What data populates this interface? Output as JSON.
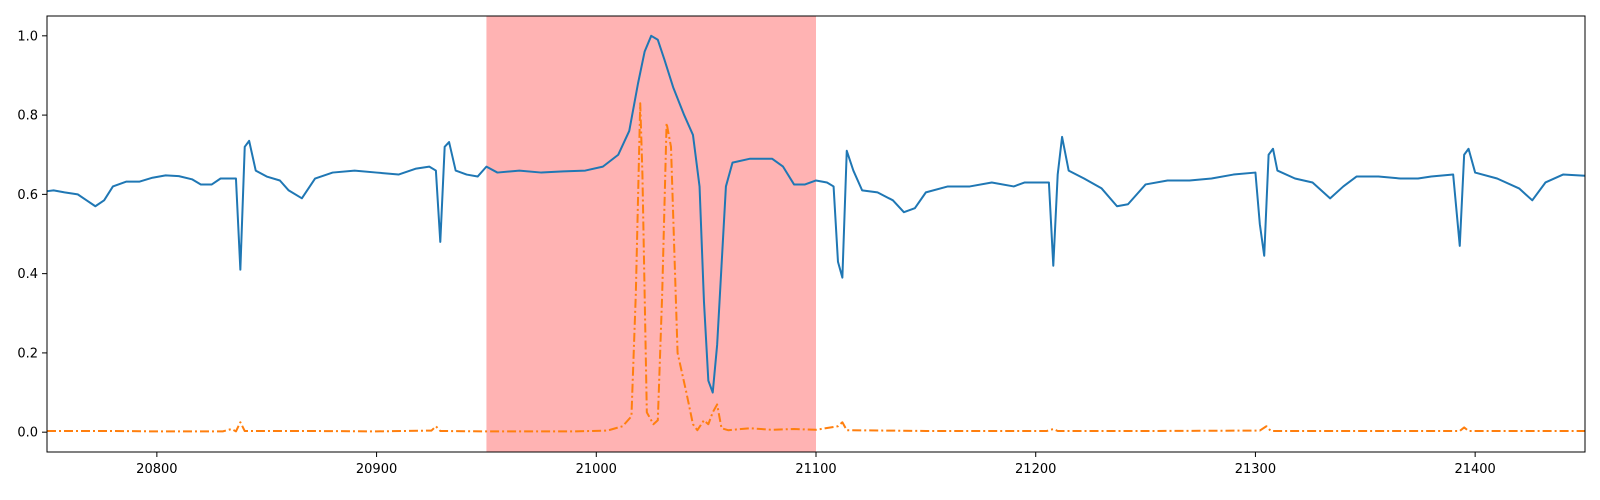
{
  "chart_data": {
    "type": "line",
    "xlim": [
      20750,
      21450
    ],
    "ylim": [
      -0.05,
      1.05
    ],
    "x_ticks": [
      20800,
      20900,
      21000,
      21100,
      21200,
      21300,
      21400
    ],
    "x_tick_labels": [
      "20800",
      "20900",
      "21000",
      "21100",
      "21200",
      "21300",
      "21400"
    ],
    "y_ticks": [
      0.0,
      0.2,
      0.4,
      0.6,
      0.8,
      1.0
    ],
    "y_tick_labels": [
      "0.0",
      "0.2",
      "0.4",
      "0.6",
      "0.8",
      "1.0"
    ],
    "grid": false,
    "highlight_region": {
      "x_start": 20950,
      "x_end": 21100,
      "color": "#ffb3b3"
    },
    "series": [
      {
        "color": "#1f77b4",
        "line_style": "solid",
        "points": [
          [
            20750,
            0.608
          ],
          [
            20753,
            0.61
          ],
          [
            20758,
            0.605
          ],
          [
            20764,
            0.6
          ],
          [
            20768,
            0.585
          ],
          [
            20772,
            0.57
          ],
          [
            20776,
            0.585
          ],
          [
            20780,
            0.62
          ],
          [
            20786,
            0.632
          ],
          [
            20792,
            0.632
          ],
          [
            20798,
            0.642
          ],
          [
            20804,
            0.648
          ],
          [
            20810,
            0.646
          ],
          [
            20816,
            0.638
          ],
          [
            20820,
            0.625
          ],
          [
            20825,
            0.625
          ],
          [
            20829,
            0.64
          ],
          [
            20833,
            0.64
          ],
          [
            20836,
            0.64
          ],
          [
            20838,
            0.41
          ],
          [
            20840,
            0.72
          ],
          [
            20842,
            0.735
          ],
          [
            20845,
            0.66
          ],
          [
            20850,
            0.645
          ],
          [
            20856,
            0.635
          ],
          [
            20860,
            0.61
          ],
          [
            20866,
            0.59
          ],
          [
            20872,
            0.64
          ],
          [
            20880,
            0.655
          ],
          [
            20890,
            0.66
          ],
          [
            20900,
            0.655
          ],
          [
            20910,
            0.65
          ],
          [
            20918,
            0.665
          ],
          [
            20924,
            0.67
          ],
          [
            20927,
            0.66
          ],
          [
            20929,
            0.48
          ],
          [
            20931,
            0.72
          ],
          [
            20933,
            0.732
          ],
          [
            20936,
            0.66
          ],
          [
            20941,
            0.65
          ],
          [
            20946,
            0.645
          ],
          [
            20950,
            0.67
          ],
          [
            20955,
            0.655
          ],
          [
            20965,
            0.66
          ],
          [
            20975,
            0.655
          ],
          [
            20985,
            0.658
          ],
          [
            20995,
            0.66
          ],
          [
            21003,
            0.67
          ],
          [
            21010,
            0.7
          ],
          [
            21015,
            0.76
          ],
          [
            21019,
            0.88
          ],
          [
            21022,
            0.96
          ],
          [
            21025,
            1.0
          ],
          [
            21028,
            0.99
          ],
          [
            21031,
            0.94
          ],
          [
            21035,
            0.87
          ],
          [
            21040,
            0.8
          ],
          [
            21044,
            0.75
          ],
          [
            21047,
            0.62
          ],
          [
            21049,
            0.33
          ],
          [
            21051,
            0.13
          ],
          [
            21053,
            0.1
          ],
          [
            21055,
            0.22
          ],
          [
            21057,
            0.42
          ],
          [
            21059,
            0.62
          ],
          [
            21062,
            0.68
          ],
          [
            21070,
            0.69
          ],
          [
            21080,
            0.69
          ],
          [
            21085,
            0.67
          ],
          [
            21090,
            0.625
          ],
          [
            21095,
            0.625
          ],
          [
            21100,
            0.635
          ],
          [
            21105,
            0.63
          ],
          [
            21108,
            0.62
          ],
          [
            21110,
            0.43
          ],
          [
            21112,
            0.39
          ],
          [
            21114,
            0.71
          ],
          [
            21117,
            0.66
          ],
          [
            21121,
            0.61
          ],
          [
            21128,
            0.605
          ],
          [
            21135,
            0.585
          ],
          [
            21140,
            0.555
          ],
          [
            21145,
            0.565
          ],
          [
            21150,
            0.605
          ],
          [
            21160,
            0.62
          ],
          [
            21170,
            0.62
          ],
          [
            21180,
            0.63
          ],
          [
            21190,
            0.62
          ],
          [
            21195,
            0.63
          ],
          [
            21206,
            0.63
          ],
          [
            21208,
            0.42
          ],
          [
            21210,
            0.65
          ],
          [
            21212,
            0.745
          ],
          [
            21215,
            0.66
          ],
          [
            21222,
            0.64
          ],
          [
            21230,
            0.615
          ],
          [
            21237,
            0.57
          ],
          [
            21242,
            0.575
          ],
          [
            21250,
            0.625
          ],
          [
            21260,
            0.635
          ],
          [
            21270,
            0.635
          ],
          [
            21280,
            0.64
          ],
          [
            21290,
            0.65
          ],
          [
            21300,
            0.655
          ],
          [
            21302,
            0.525
          ],
          [
            21304,
            0.445
          ],
          [
            21306,
            0.7
          ],
          [
            21308,
            0.715
          ],
          [
            21310,
            0.66
          ],
          [
            21318,
            0.64
          ],
          [
            21326,
            0.63
          ],
          [
            21334,
            0.59
          ],
          [
            21340,
            0.62
          ],
          [
            21346,
            0.645
          ],
          [
            21356,
            0.645
          ],
          [
            21366,
            0.64
          ],
          [
            21374,
            0.64
          ],
          [
            21380,
            0.645
          ],
          [
            21390,
            0.65
          ],
          [
            21393,
            0.47
          ],
          [
            21395,
            0.7
          ],
          [
            21397,
            0.715
          ],
          [
            21400,
            0.655
          ],
          [
            21410,
            0.64
          ],
          [
            21420,
            0.615
          ],
          [
            21426,
            0.585
          ],
          [
            21432,
            0.63
          ],
          [
            21440,
            0.65
          ],
          [
            21450,
            0.647
          ]
        ]
      },
      {
        "color": "#ff7f0e",
        "line_style": "dash-dot",
        "points": [
          [
            20750,
            0.003
          ],
          [
            20780,
            0.003
          ],
          [
            20800,
            0.002
          ],
          [
            20830,
            0.002
          ],
          [
            20834,
            0.008
          ],
          [
            20836,
            0.002
          ],
          [
            20838,
            0.025
          ],
          [
            20840,
            0.003
          ],
          [
            20870,
            0.003
          ],
          [
            20900,
            0.002
          ],
          [
            20925,
            0.004
          ],
          [
            20927,
            0.015
          ],
          [
            20929,
            0.003
          ],
          [
            20950,
            0.002
          ],
          [
            20990,
            0.002
          ],
          [
            21005,
            0.004
          ],
          [
            21012,
            0.015
          ],
          [
            21016,
            0.04
          ],
          [
            21018,
            0.35
          ],
          [
            21020,
            0.83
          ],
          [
            21021,
            0.65
          ],
          [
            21023,
            0.05
          ],
          [
            21026,
            0.02
          ],
          [
            21028,
            0.03
          ],
          [
            21030,
            0.35
          ],
          [
            21032,
            0.78
          ],
          [
            21034,
            0.72
          ],
          [
            21037,
            0.2
          ],
          [
            21041,
            0.1
          ],
          [
            21044,
            0.02
          ],
          [
            21046,
            0.005
          ],
          [
            21049,
            0.03
          ],
          [
            21051,
            0.02
          ],
          [
            21053,
            0.05
          ],
          [
            21055,
            0.07
          ],
          [
            21057,
            0.01
          ],
          [
            21060,
            0.005
          ],
          [
            21070,
            0.01
          ],
          [
            21080,
            0.006
          ],
          [
            21090,
            0.008
          ],
          [
            21100,
            0.006
          ],
          [
            21110,
            0.015
          ],
          [
            21112,
            0.025
          ],
          [
            21114,
            0.005
          ],
          [
            21150,
            0.003
          ],
          [
            21205,
            0.003
          ],
          [
            21208,
            0.008
          ],
          [
            21210,
            0.003
          ],
          [
            21250,
            0.003
          ],
          [
            21302,
            0.004
          ],
          [
            21305,
            0.015
          ],
          [
            21307,
            0.003
          ],
          [
            21350,
            0.003
          ],
          [
            21393,
            0.003
          ],
          [
            21395,
            0.012
          ],
          [
            21397,
            0.003
          ],
          [
            21450,
            0.003
          ]
        ]
      }
    ]
  }
}
